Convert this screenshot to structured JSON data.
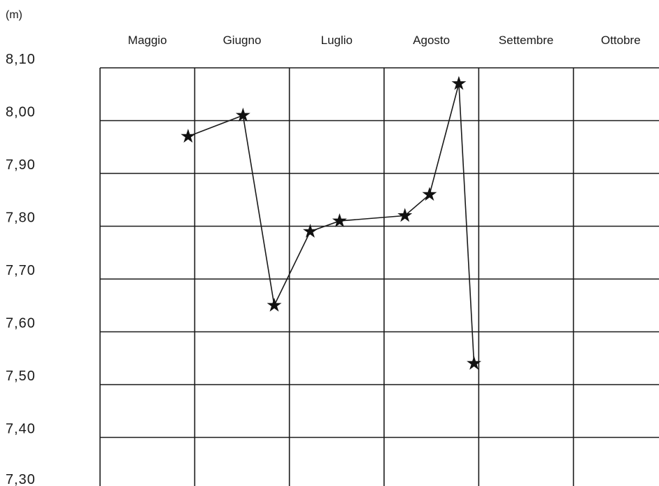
{
  "chart_data": {
    "type": "line",
    "unit_label": "(m)",
    "xlabel": "",
    "ylabel": "(m)",
    "x_categories": [
      "Maggio",
      "Giugno",
      "Luglio",
      "Agosto",
      "Settembre",
      "Ottobre"
    ],
    "y_ticks": [
      "8,10",
      "8,00",
      "7,90",
      "7,80",
      "7,70",
      "7,60",
      "7,50",
      "7,40",
      "7,30"
    ],
    "ylim": [
      7.3,
      8.1
    ],
    "grid": true,
    "marker": "star",
    "series": [
      {
        "points": [
          {
            "x": "Giugno (inizio)",
            "month_pos": 0.93,
            "y": 7.97
          },
          {
            "x": "Giugno (metà)",
            "month_pos": 1.51,
            "y": 8.01
          },
          {
            "x": "Luglio (inizio)",
            "month_pos": 1.84,
            "y": 7.65
          },
          {
            "x": "Luglio (metà)",
            "month_pos": 2.22,
            "y": 7.79
          },
          {
            "x": "Luglio (metà)",
            "month_pos": 2.53,
            "y": 7.81
          },
          {
            "x": "Agosto (inizio)",
            "month_pos": 3.22,
            "y": 7.82
          },
          {
            "x": "Agosto (metà)",
            "month_pos": 3.48,
            "y": 7.86
          },
          {
            "x": "Agosto (fine)",
            "month_pos": 3.79,
            "y": 8.07
          },
          {
            "x": "Agosto (fine)",
            "month_pos": 3.95,
            "y": 7.54
          }
        ]
      }
    ]
  }
}
